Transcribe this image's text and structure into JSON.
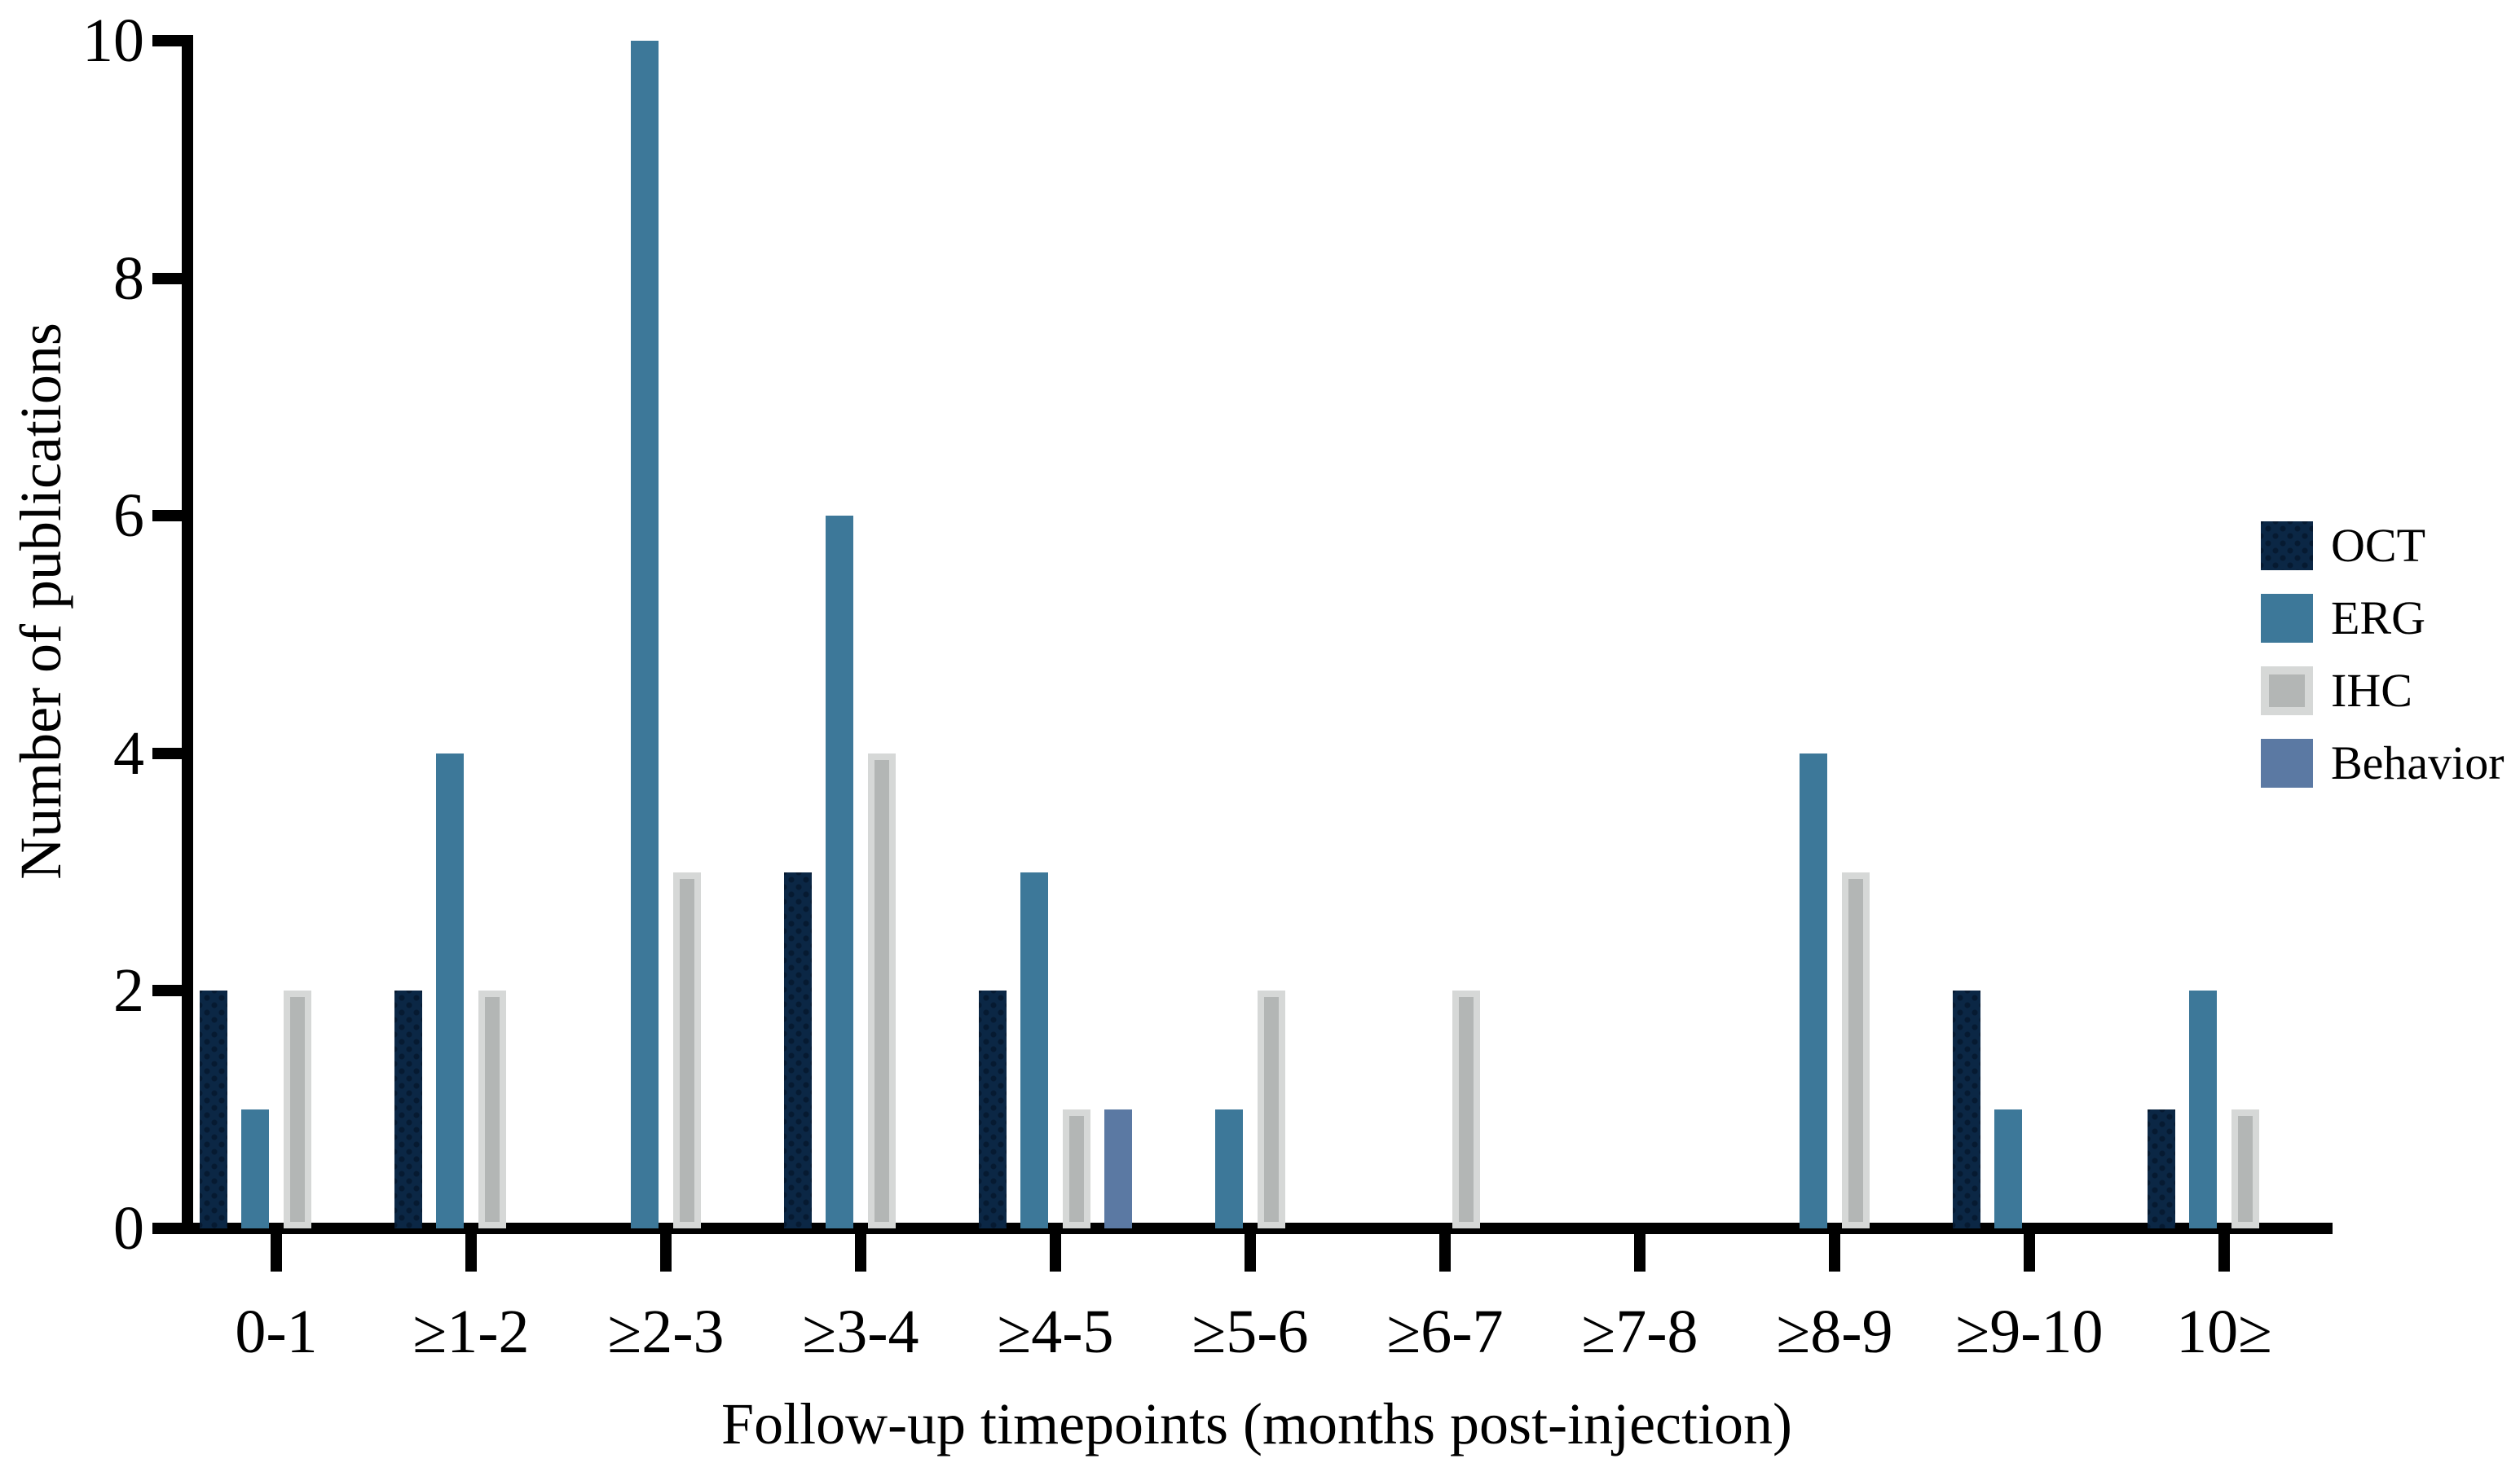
{
  "chart_data": {
    "type": "bar",
    "title": "",
    "xlabel": "Follow-up timepoints (months post-injection)",
    "ylabel": "Number of publications",
    "categories": [
      "0-1",
      "≥1-2",
      "≥2-3",
      "≥3-4",
      "≥4-5",
      "≥5-6",
      "≥6-7",
      "≥7-8",
      "≥8-9",
      "≥9-10",
      "10≥"
    ],
    "series": [
      {
        "name": "OCT",
        "color": "#0b2745",
        "pattern": "dots",
        "values": [
          2,
          2,
          0,
          3,
          2,
          0,
          0,
          0,
          0,
          2,
          1
        ]
      },
      {
        "name": "ERG",
        "color": "#3d7899",
        "pattern": "solid",
        "values": [
          1,
          4,
          10,
          6,
          3,
          1,
          0,
          0,
          4,
          1,
          2
        ]
      },
      {
        "name": "IHC",
        "color": "#b3b6b5",
        "pattern": "light-border",
        "border_color": "#d6d8d7",
        "values": [
          2,
          2,
          3,
          4,
          1,
          2,
          2,
          0,
          3,
          0,
          1
        ]
      },
      {
        "name": "Behavior",
        "color": "#5b79a3",
        "pattern": "solid",
        "values": [
          0,
          0,
          0,
          0,
          1,
          0,
          0,
          0,
          0,
          0,
          0
        ]
      }
    ],
    "ylim": [
      0,
      10
    ],
    "yticks": [
      0,
      2,
      4,
      6,
      8,
      10
    ],
    "grid": false,
    "legend_position": "right",
    "axis_color": "#000000",
    "background_color": "#ffffff"
  }
}
